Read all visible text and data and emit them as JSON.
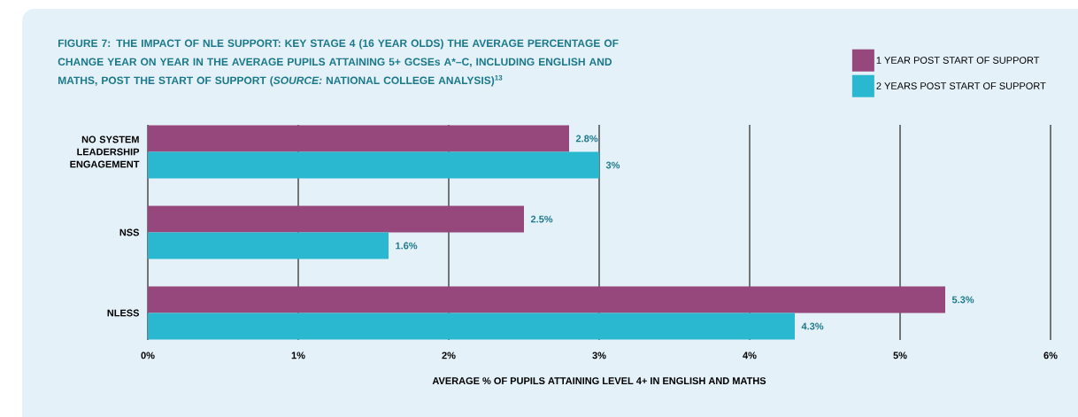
{
  "chart_data": {
    "type": "bar",
    "orientation": "horizontal",
    "title": "FIGURE 7: THE IMPACT OF NLE SUPPORT: KEY STAGE 4 (16 YEAR OLDS) THE AVERAGE PERCENTAGE OF CHANGE YEAR ON YEAR IN THE AVERAGE PUPILS ATTAINING 5+ GCSEs A*–C, INCLUDING ENGLISH AND MATHS, POST THE START OF SUPPORT (*SOURCE:* NATIONAL COLLEGE ANALYSIS)$^{13}$",
    "xlabel": "AVERAGE % OF PUPILS ATTAINING LEVEL 4+ IN ENGLISH AND MATHS",
    "categories": [
      "NO SYSTEM LEADERSHIP ENGAGEMENT",
      "NSS",
      "NLESS"
    ],
    "series": [
      {
        "name": "1 YEAR POST START OF SUPPORT",
        "color": "#96477b",
        "values": [
          2.8,
          2.5,
          5.3
        ],
        "value_labels": [
          "2.8%",
          "2.5%",
          "5.3%"
        ]
      },
      {
        "name": "2 YEARS POST START OF SUPPORT",
        "color": "#2ab7d0",
        "values": [
          3,
          1.6,
          4.3
        ],
        "value_labels": [
          "3%",
          "1.6%",
          "4.3%"
        ]
      }
    ],
    "xlim": [
      0,
      6
    ],
    "xticks": [
      {
        "value": 0,
        "label": "0%"
      },
      {
        "value": 1,
        "label": "1%"
      },
      {
        "value": 2,
        "label": "2%"
      },
      {
        "value": 3,
        "label": "3%"
      },
      {
        "value": 4,
        "label": "4%"
      },
      {
        "value": 5,
        "label": "5%"
      },
      {
        "value": 6,
        "label": "6%"
      }
    ],
    "grid": "x",
    "legend": "top right"
  }
}
